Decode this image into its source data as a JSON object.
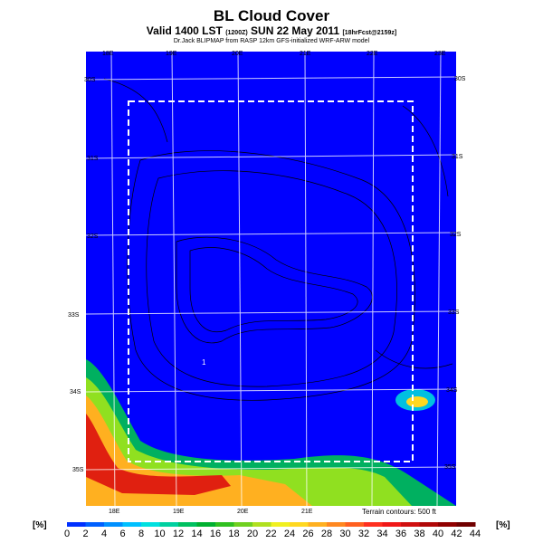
{
  "title": "BL Cloud Cover",
  "subtitle": {
    "main": "Valid 1400 LST",
    "run": "(1200Z)",
    "date": "SUN 22 May 2011",
    "fcst": "[18hrFcst@2159z]"
  },
  "credit": "Dr.Jack BLIPMAP from RASP 12km GFS-initialized WRF-ARW model",
  "lon_labels_top": [
    "18E",
    "19E",
    "20E",
    "21E",
    "22E",
    "23E"
  ],
  "lon_labels_bottom": [
    "18E",
    "19E",
    "20E",
    "21E"
  ],
  "lat_labels_left": [
    "30S",
    "31S",
    "32S",
    "33S",
    "34S",
    "35S"
  ],
  "lat_labels_right": [
    "30S",
    "31S",
    "32S",
    "33S",
    "34S",
    "35S"
  ],
  "point_label": "1",
  "terrain_note": "Terrain contours: 500 ft",
  "colorbar": {
    "unit": "[%]",
    "ticks": [
      "0",
      "2",
      "4",
      "6",
      "8",
      "10",
      "12",
      "14",
      "16",
      "18",
      "20",
      "22",
      "24",
      "26",
      "28",
      "30",
      "32",
      "34",
      "36",
      "38",
      "40",
      "42",
      "44"
    ],
    "colors": [
      "#0030ff",
      "#0060ff",
      "#0090ff",
      "#00c0ff",
      "#00e0e0",
      "#00d0a0",
      "#00c060",
      "#00b030",
      "#30c020",
      "#70d020",
      "#b0e020",
      "#f0f020",
      "#ffd820",
      "#ffb020",
      "#ff8820",
      "#ff6020",
      "#ff3020",
      "#f01818",
      "#d01010",
      "#b00808",
      "#900000",
      "#700000"
    ]
  },
  "colors": {
    "field": "#0000ff",
    "grid": "#ffffff",
    "domain_box": "#ffffff",
    "contour": "#000000"
  }
}
